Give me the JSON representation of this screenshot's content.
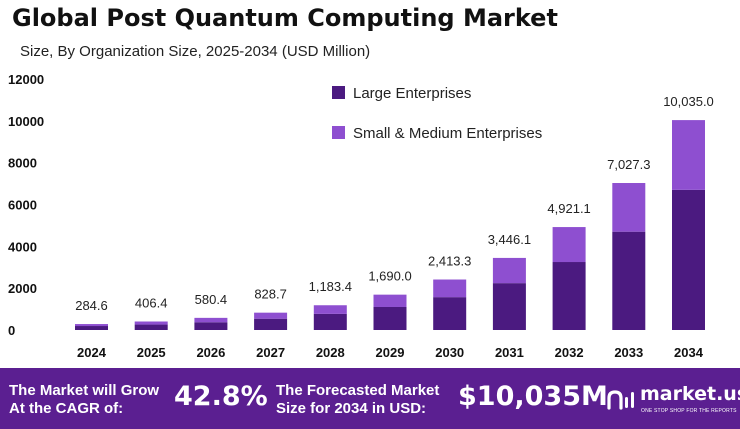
{
  "title": "Global Post Quantum Computing Market",
  "subtitle": "Size, By Organization Size, 2025-2034 (USD Million)",
  "colors": {
    "large": "#4b1a80",
    "small": "#8e4fd0",
    "footer_bg": "#5b1f91",
    "text": "#111111"
  },
  "chart_data": {
    "type": "bar",
    "stacked": true,
    "categories": [
      "2024",
      "2025",
      "2026",
      "2027",
      "2028",
      "2029",
      "2030",
      "2031",
      "2032",
      "2033",
      "2034"
    ],
    "series": [
      {
        "name": "Large Enterprises",
        "values": [
          190,
          260,
          370,
          540,
          770,
          1100,
          1570,
          2240,
          3250,
          4700,
          6700
        ]
      },
      {
        "name": "Small & Medium Enterprises",
        "values": [
          94.6,
          146.4,
          210.4,
          288.7,
          413.4,
          590.0,
          843.3,
          1206.1,
          1671.1,
          2327.3,
          3335.0
        ]
      }
    ],
    "totals_labels": [
      "284.6",
      "406.4",
      "580.4",
      "828.7",
      "1,183.4",
      "1,690.0",
      "2,413.3",
      "3,446.1",
      "4,921.1",
      "7,027.3",
      "10,035.0"
    ],
    "y_ticks": [
      "0",
      "2000",
      "4000",
      "6000",
      "8000",
      "10000",
      "12000"
    ],
    "ylim": [
      0,
      12000
    ],
    "legend_position": "top-center",
    "grid": false
  },
  "footer": {
    "cagr_label_line1": "The Market will Grow",
    "cagr_label_line2": "At the CAGR of:",
    "cagr_value": "42.8%",
    "forecast_label_line1": "The Forecasted Market",
    "forecast_label_line2": "Size for 2034 in USD:",
    "forecast_value": "$10,035M",
    "brand": "market.us",
    "brand_tagline": "ONE STOP SHOP FOR THE REPORTS"
  }
}
